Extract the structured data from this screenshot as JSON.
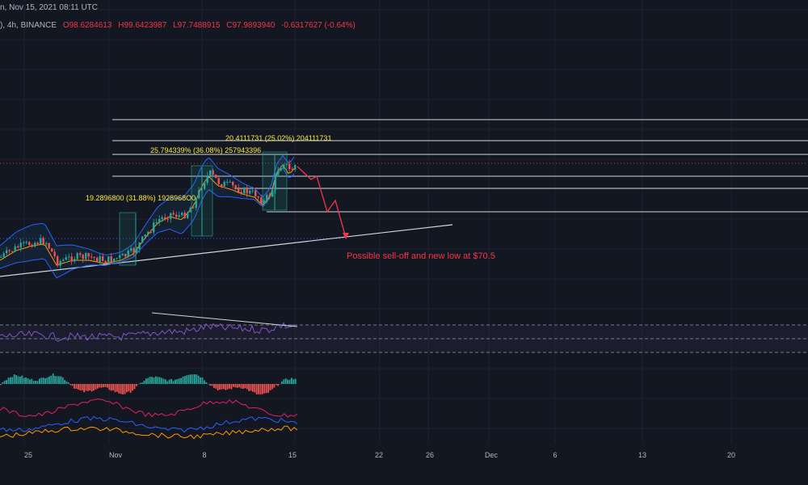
{
  "header": {
    "timestamp": "n, Nov 15, 2021 08:11 UTC"
  },
  "symbol_line": {
    "prefix": "), 4h, BINANCE",
    "open": "O98.6284613",
    "high": "H99.6423987",
    "low": "L97.7488915",
    "close": "C97.9893940",
    "change": "-0.6317627 (-0.64%)",
    "colors": {
      "label": "#b2b5be",
      "value": "#f23645"
    }
  },
  "annotations": {
    "measure_1": "19.2896800 (31.88%) 1928968O0",
    "measure_2": "25.794339% (36.08%) 257943396",
    "measure_3": "20.4111731 (25.02%) 204111731",
    "projection_note": "Possible sell-off and new low at $70.5"
  },
  "x_axis": {
    "labels": [
      "25",
      "Nov",
      "8",
      "15",
      "22",
      "26",
      "Dec",
      "6",
      "13",
      "20"
    ]
  },
  "colors": {
    "background": "#131722",
    "grid": "#1e222d",
    "up": "#26a69a",
    "down": "#ef5350",
    "bb": "#2962ff",
    "ma": "#ff9800",
    "rsi": "#7e57c2",
    "annotation": "#ffeb3b",
    "projection": "#f23645",
    "level": "#d1d4dc"
  },
  "panes": {
    "main": "price-candles",
    "rsi": "rsi-indicator",
    "histogram": "momentum-histogram",
    "lines": "dmi-indicator"
  }
}
